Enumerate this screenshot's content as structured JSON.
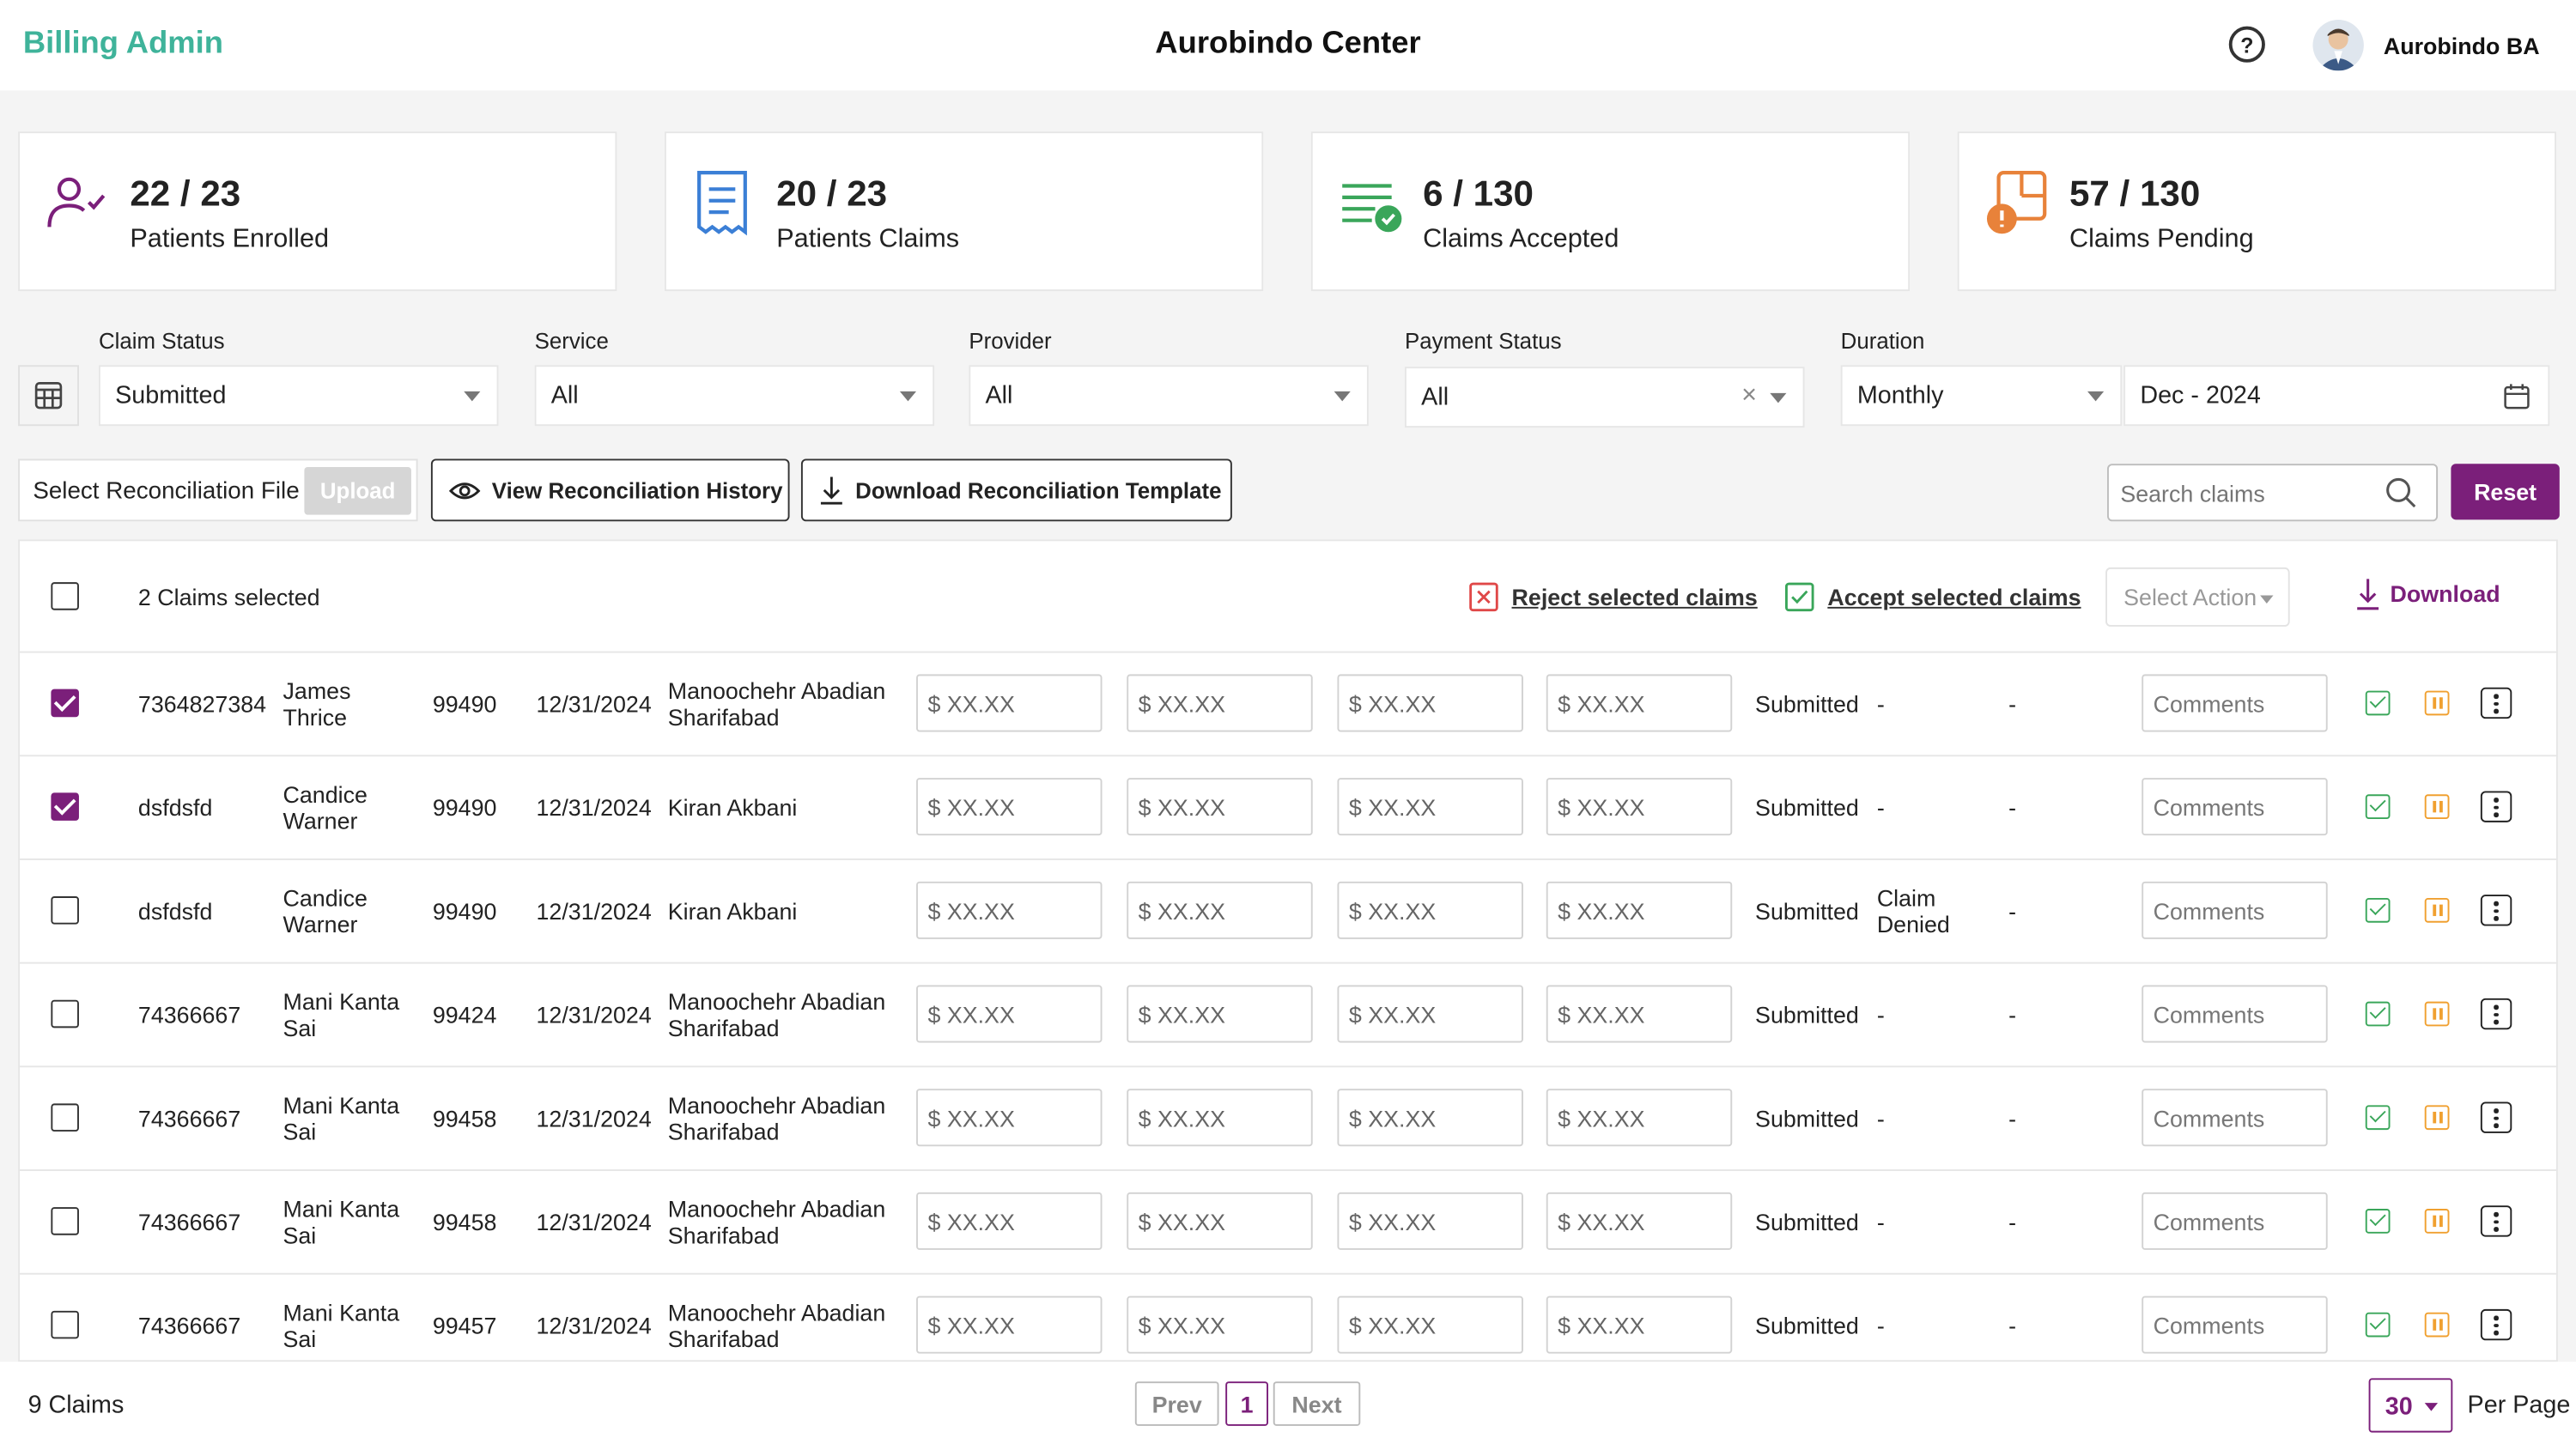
{
  "header": {
    "brand": "Billing Admin",
    "center_title": "Aurobindo Center",
    "user_name": "Aurobindo BA"
  },
  "stats": [
    {
      "value": "22 / 23",
      "label": "Patients Enrolled",
      "icon": "user-check-icon",
      "color": "#7b1f7a"
    },
    {
      "value": "20 / 23",
      "label": "Patients Claims",
      "icon": "receipt-icon",
      "color": "#3b7fd6"
    },
    {
      "value": "6 / 130",
      "label": "Claims Accepted",
      "icon": "list-check-icon",
      "color": "#3aa65a"
    },
    {
      "value": "57 / 130",
      "label": "Claims Pending",
      "icon": "pending-alert-icon",
      "color": "#e8823a"
    }
  ],
  "filters": {
    "claim_status": {
      "label": "Claim Status",
      "value": "Submitted"
    },
    "service": {
      "label": "Service",
      "value": "All"
    },
    "provider": {
      "label": "Provider",
      "value": "All"
    },
    "payment_status": {
      "label": "Payment Status",
      "value": "All"
    },
    "duration": {
      "label": "Duration",
      "value": "Monthly",
      "date": "Dec - 2024"
    }
  },
  "actions": {
    "select_file": "Select Reconciliation File",
    "upload": "Upload",
    "view_history": "View Reconciliation History",
    "download_template": "Download Reconciliation Template",
    "search_placeholder": "Search claims",
    "reset": "Reset"
  },
  "table_header": {
    "selected_count": "2 Claims selected",
    "reject": "Reject selected claims",
    "accept": "Accept selected claims",
    "select_action": "Select Action",
    "download": "Download"
  },
  "rows": [
    {
      "checked": true,
      "id": "7364827384",
      "name1": "James",
      "name2": "Thrice",
      "code": "99490",
      "date": "12/31/2024",
      "prov1": "Manoochehr Abadian",
      "prov2": "Sharifabad",
      "amt": [
        "$ XX.XX",
        "$ XX.XX",
        "$ XX.XX",
        "$ XX.XX"
      ],
      "status": "Submitted",
      "reason1": "-",
      "reason2": "",
      "dash": "-",
      "comment": "Comments"
    },
    {
      "checked": true,
      "id": "dsfdsfd",
      "name1": "Candice",
      "name2": "Warner",
      "code": "99490",
      "date": "12/31/2024",
      "prov1": "Kiran Akbani",
      "prov2": "",
      "amt": [
        "$ XX.XX",
        "$ XX.XX",
        "$ XX.XX",
        "$ XX.XX"
      ],
      "status": "Submitted",
      "reason1": "-",
      "reason2": "",
      "dash": "-",
      "comment": "Comments"
    },
    {
      "checked": false,
      "id": "dsfdsfd",
      "name1": "Candice",
      "name2": "Warner",
      "code": "99490",
      "date": "12/31/2024",
      "prov1": "Kiran Akbani",
      "prov2": "",
      "amt": [
        "$ XX.XX",
        "$ XX.XX",
        "$ XX.XX",
        "$ XX.XX"
      ],
      "status": "Submitted",
      "reason1": "Claim",
      "reason2": "Denied",
      "dash": "-",
      "comment": "Comments"
    },
    {
      "checked": false,
      "id": "74366667",
      "name1": "Mani Kanta",
      "name2": "Sai",
      "code": "99424",
      "date": "12/31/2024",
      "prov1": "Manoochehr Abadian",
      "prov2": "Sharifabad",
      "amt": [
        "$ XX.XX",
        "$ XX.XX",
        "$ XX.XX",
        "$ XX.XX"
      ],
      "status": "Submitted",
      "reason1": "-",
      "reason2": "",
      "dash": "-",
      "comment": "Comments"
    },
    {
      "checked": false,
      "id": "74366667",
      "name1": "Mani Kanta",
      "name2": "Sai",
      "code": "99458",
      "date": "12/31/2024",
      "prov1": "Manoochehr Abadian",
      "prov2": "Sharifabad",
      "amt": [
        "$ XX.XX",
        "$ XX.XX",
        "$ XX.XX",
        "$ XX.XX"
      ],
      "status": "Submitted",
      "reason1": "-",
      "reason2": "",
      "dash": "-",
      "comment": "Comments"
    },
    {
      "checked": false,
      "id": "74366667",
      "name1": "Mani Kanta",
      "name2": "Sai",
      "code": "99458",
      "date": "12/31/2024",
      "prov1": "Manoochehr Abadian",
      "prov2": "Sharifabad",
      "amt": [
        "$ XX.XX",
        "$ XX.XX",
        "$ XX.XX",
        "$ XX.XX"
      ],
      "status": "Submitted",
      "reason1": "-",
      "reason2": "",
      "dash": "-",
      "comment": "Comments"
    },
    {
      "checked": false,
      "id": "74366667",
      "name1": "Mani Kanta",
      "name2": "Sai",
      "code": "99457",
      "date": "12/31/2024",
      "prov1": "Manoochehr Abadian",
      "prov2": "Sharifabad",
      "amt": [
        "$ XX.XX",
        "$ XX.XX",
        "$ XX.XX",
        "$ XX.XX"
      ],
      "status": "Submitted",
      "reason1": "-",
      "reason2": "",
      "dash": "-",
      "comment": "Comments"
    }
  ],
  "footer": {
    "claims_count": "9 Claims",
    "prev": "Prev",
    "page": "1",
    "next": "Next",
    "per_page_value": "30",
    "per_page_label": "Per Page"
  },
  "colors": {
    "brand": "#3fb39a",
    "accent": "#7b1f7a",
    "accept": "#3aa65a",
    "reject": "#e04848",
    "pending": "#f0a030"
  }
}
